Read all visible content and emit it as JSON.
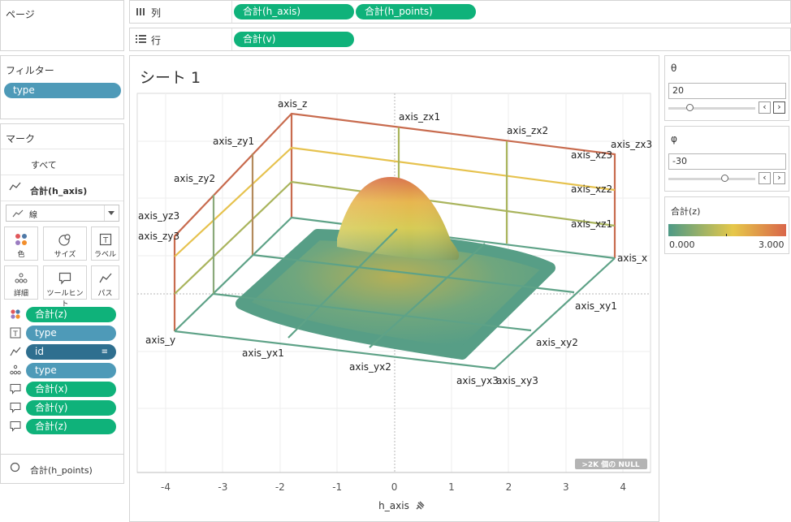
{
  "shelves": {
    "pages_label": "ページ",
    "columns_label": "列",
    "rows_label": "行",
    "columns_pills": [
      "合計(h_axis)",
      "合計(h_points)"
    ],
    "rows_pills": [
      "合計(v)"
    ]
  },
  "filters": {
    "title": "フィルター",
    "pills": [
      "type"
    ]
  },
  "marks": {
    "title": "マーク",
    "all_label": "すべて",
    "layer1_label": "合計(h_axis)",
    "mark_type": "線",
    "buttons": {
      "color": "色",
      "size": "サイズ",
      "label": "ラベル",
      "detail": "詳細",
      "tooltip": "ツールヒント",
      "path": "パス"
    },
    "fields": [
      {
        "icon": "color-icon",
        "label": "合計(z)",
        "style": "green"
      },
      {
        "icon": "text-icon",
        "label": "type",
        "style": "blue"
      },
      {
        "icon": "path-icon",
        "label": "id",
        "style": "dark"
      },
      {
        "icon": "detail-icon",
        "label": "type",
        "style": "blue"
      },
      {
        "icon": "tooltip-icon",
        "label": "合計(x)",
        "style": "green"
      },
      {
        "icon": "tooltip-icon",
        "label": "合計(y)",
        "style": "green"
      },
      {
        "icon": "tooltip-icon",
        "label": "合計(z)",
        "style": "green"
      }
    ],
    "layer2_label": "合計(h_points)"
  },
  "sheet": {
    "title": "シート 1",
    "null_badge": ">2K 個の NULL",
    "x_axis_title": "h_axis",
    "x_ticks": [
      "-4",
      "-3",
      "-2",
      "-1",
      "0",
      "1",
      "2",
      "3",
      "4"
    ],
    "box_labels": {
      "axis_z": "axis_z",
      "axis_zx1": "axis_zx1",
      "axis_zx2": "axis_zx2",
      "axis_zx3": "axis_zx3",
      "axis_zy1": "axis_zy1",
      "axis_zy2": "axis_zy2",
      "axis_zy3": "axis_zy3",
      "axis_yz3": "axis_yz3",
      "axis_xz3": "axis_xz3",
      "axis_xz2": "axis_xz2",
      "axis_xz1": "axis_xz1",
      "axis_x": "axis_x",
      "axis_xy1": "axis_xy1",
      "axis_xy2": "axis_xy2",
      "axis_xy3": "axis_xy3",
      "axis_y": "axis_y",
      "axis_yx1": "axis_yx1",
      "axis_yx2": "axis_yx2",
      "axis_yx3": "axis_yx3"
    }
  },
  "params": {
    "theta": {
      "title": "θ",
      "value": "20",
      "slider_fraction": 0.25
    },
    "phi": {
      "title": "φ",
      "value": "-30",
      "slider_fraction": 0.65
    }
  },
  "legend": {
    "title": "合計(z)",
    "min": "0.000",
    "max": "3.000",
    "colors": [
      "#4e9a86",
      "#e6c84a",
      "#d9664a"
    ]
  },
  "chart_data": {
    "type": "scatter",
    "x_ticks": [
      -4,
      -3,
      -2,
      -1,
      0,
      1,
      2,
      3,
      4
    ],
    "xlabel": "h_axis",
    "color_range": [
      0,
      3
    ],
    "color_legend_title": "合計(z)"
  }
}
